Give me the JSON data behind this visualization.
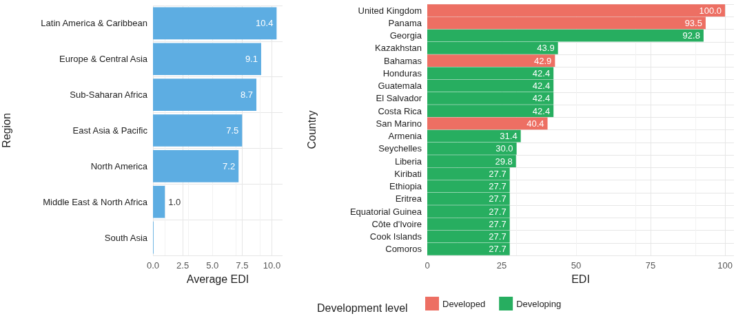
{
  "chart_data": [
    {
      "type": "bar",
      "orientation": "horizontal",
      "xlabel": "Average EDI",
      "ylabel": "Region",
      "categories": [
        "Latin America & Caribbean",
        "Europe & Central Asia",
        "Sub-Saharan Africa",
        "East Asia & Pacific",
        "North America",
        "Middle East & North Africa",
        "South Asia"
      ],
      "series": [
        {
          "color": "#5dade2",
          "values": [
            10.4,
            9.1,
            8.7,
            7.5,
            7.2,
            1.0,
            0.05
          ],
          "value_labels": [
            "10.4",
            "9.1",
            "8.7",
            "7.5",
            "7.2",
            "1.0",
            null
          ]
        }
      ],
      "xlim": [
        0,
        10.9
      ],
      "xticks": [
        {
          "value": 0,
          "label": "0.0"
        },
        2.5,
        {
          "value": 5,
          "label": "5.0"
        },
        7.5,
        {
          "value": 10,
          "label": "10.0"
        }
      ],
      "grid": true,
      "legend": false
    },
    {
      "type": "bar",
      "orientation": "horizontal",
      "xlabel": "EDI",
      "ylabel": "Country",
      "legend_title": "Development level",
      "legend": "bottom",
      "categories": [
        "United Kingdom",
        "Panama",
        "Georgia",
        "Kazakhstan",
        "Bahamas",
        "Honduras",
        "Guatemala",
        "El Salvador",
        "Costa Rica",
        "San Marino",
        "Armenia",
        "Seychelles",
        "Liberia",
        "Kiribati",
        "Ethiopia",
        "Eritrea",
        "Equatorial Guinea",
        "Côte d'Ivoire",
        "Cook Islands",
        "Comoros"
      ],
      "series": [
        {
          "name": "Developed",
          "color": "#ed6f63",
          "values": [
            100.0,
            93.5,
            null,
            null,
            42.9,
            null,
            null,
            null,
            null,
            40.4,
            null,
            null,
            null,
            null,
            null,
            null,
            null,
            null,
            null,
            null
          ],
          "value_labels": [
            "100.0",
            "93.5",
            null,
            null,
            "42.9",
            null,
            null,
            null,
            null,
            "40.4",
            null,
            null,
            null,
            null,
            null,
            null,
            null,
            null,
            null,
            null
          ]
        },
        {
          "name": "Developing",
          "color": "#27ae60",
          "values": [
            null,
            null,
            92.8,
            43.9,
            null,
            42.4,
            42.4,
            42.4,
            42.4,
            null,
            31.4,
            30.0,
            29.8,
            27.7,
            27.7,
            27.7,
            27.7,
            27.7,
            27.7,
            27.7
          ],
          "value_labels": [
            null,
            null,
            "92.8",
            "43.9",
            null,
            "42.4",
            "42.4",
            "42.4",
            "42.4",
            null,
            "31.4",
            "30.0",
            "29.8",
            "27.7",
            "27.7",
            "27.7",
            "27.7",
            "27.7",
            "27.7",
            "27.7"
          ]
        }
      ],
      "xlim": [
        0,
        103
      ],
      "xticks": [
        0,
        25,
        50,
        75,
        100
      ],
      "grid": true
    }
  ]
}
